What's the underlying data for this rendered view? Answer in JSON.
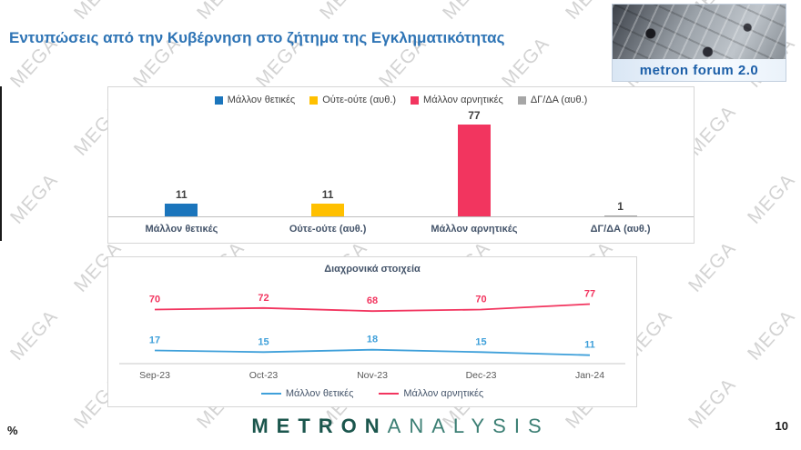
{
  "header": {
    "title": "Εντυπώσεις από την Κυβέρνηση στο ζήτημα της Εγκληματικότητας",
    "logo_text": "metron forum 2.0"
  },
  "watermark": {
    "text": "MEGA"
  },
  "colors": {
    "title_blue": "#2E74B5",
    "brand_teal_dark": "#1B564D",
    "brand_teal_light": "#3C7F74",
    "axis_gray": "#C9C9C9",
    "label_navy": "#44546A",
    "watermark_gray": "#828282"
  },
  "chart_data": [
    {
      "type": "bar",
      "title": "",
      "categories": [
        "Μάλλον θετικές",
        "Ούτε-ούτε (αυθ.)",
        "Μάλλον αρνητικές",
        "ΔΓ/ΔΑ (αυθ.)"
      ],
      "values": [
        11,
        11,
        77,
        1
      ],
      "colors": [
        "#1B75BC",
        "#FFC000",
        "#F2355F",
        "#A6A6A6"
      ],
      "ylim": [
        0,
        85
      ],
      "legend_position": "top",
      "grid": false
    },
    {
      "type": "line",
      "title": "Διαχρονικά στοιχεία",
      "x": [
        "Sep-23",
        "Oct-23",
        "Nov-23",
        "Dec-23",
        "Jan-24"
      ],
      "series": [
        {
          "name": "Μάλλον θετικές",
          "color": "#3FA0DA",
          "values": [
            17,
            15,
            18,
            15,
            11
          ]
        },
        {
          "name": "Μάλλον αρνητικές",
          "color": "#F2355F",
          "values": [
            70,
            72,
            68,
            70,
            77
          ]
        }
      ],
      "ylim": [
        0,
        100
      ],
      "legend_position": "bottom",
      "grid": false
    }
  ],
  "footer": {
    "percent_label": "%",
    "page_number": "10",
    "brand_primary": "METRON",
    "brand_secondary": "ANALYSIS"
  }
}
